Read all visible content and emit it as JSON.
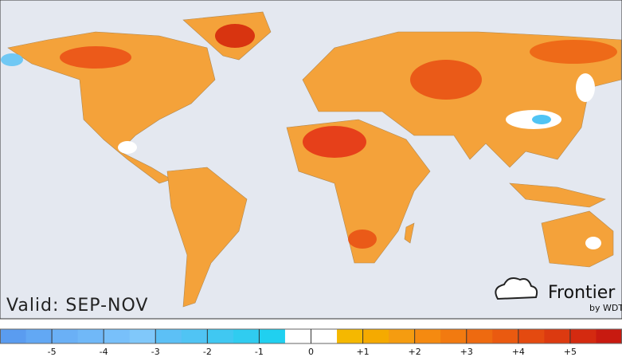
{
  "map": {
    "valid_label": "Valid: SEP-NOV",
    "logo": {
      "name": "Frontier",
      "byline": "by WDT"
    }
  },
  "legend": {
    "xlim": [
      -6,
      6
    ],
    "ticks": [
      {
        "value": -5,
        "label": "-5"
      },
      {
        "value": -4,
        "label": "-4"
      },
      {
        "value": -3,
        "label": "-3"
      },
      {
        "value": -2,
        "label": "-2"
      },
      {
        "value": -1,
        "label": "-1"
      },
      0,
      {
        "value": 1,
        "label": "+1"
      },
      {
        "value": 2,
        "label": "+2"
      },
      {
        "value": 3,
        "label": "+3"
      },
      {
        "value": 4,
        "label": "+4"
      },
      {
        "value": 5,
        "label": "+5"
      }
    ],
    "colors": [
      "#5a9cf0",
      "#62a8f4",
      "#6ab0f6",
      "#70b8f8",
      "#78c0fa",
      "#80c8fa",
      "#5cc0f6",
      "#50c4f4",
      "#40c8f2",
      "#30ccf0",
      "#20d0f0",
      "#ffffff",
      "#ffffff",
      "#f5b800",
      "#f5aa00",
      "#f59c10",
      "#f58a10",
      "#f27a10",
      "#ee6a10",
      "#ea5a10",
      "#e44a10",
      "#dc3a10",
      "#d42a10",
      "#c81a10"
    ]
  }
}
